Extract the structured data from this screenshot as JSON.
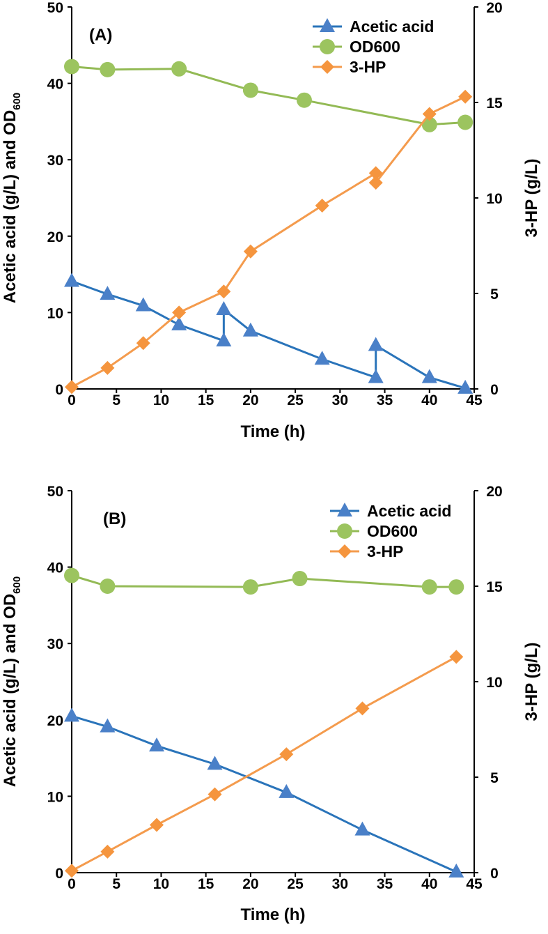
{
  "colors": {
    "acetic": "#2a74ba",
    "acetic_marker": "#4a80c8",
    "od": "#93ba55",
    "od_marker": "#9cc45f",
    "hp": "#f49b4d",
    "hp_marker": "#f5953e"
  },
  "chart_data": [
    {
      "type": "line",
      "panel_label": "(A)",
      "xlabel": "Time (h)",
      "ylabel": "Acetic acid (g/L) and OD",
      "ylabel_sub": "600",
      "y2label": "3-HP (g/L)",
      "xlim": [
        0,
        45
      ],
      "ylim": [
        0,
        50
      ],
      "y2lim": [
        0,
        20
      ],
      "x_ticks": [
        "0",
        "5",
        "10",
        "15",
        "20",
        "25",
        "30",
        "35",
        "40",
        "45"
      ],
      "y_ticks": [
        "0",
        "10",
        "20",
        "30",
        "40",
        "50"
      ],
      "y2_ticks": [
        "0",
        "5",
        "10",
        "15",
        "20"
      ],
      "legend_position": "top-right",
      "series": [
        {
          "name": "Acetic acid",
          "axis": "left",
          "marker": "triangle",
          "x": [
            0,
            4,
            8,
            12,
            17,
            17,
            20,
            28,
            34,
            34,
            40,
            44
          ],
          "y": [
            14.1,
            12.4,
            10.9,
            8.4,
            6.3,
            10.4,
            7.6,
            3.9,
            1.5,
            5.7,
            1.5,
            0.1
          ]
        },
        {
          "name": "OD600",
          "axis": "left",
          "marker": "circle",
          "x": [
            0,
            4,
            12,
            20,
            26,
            40,
            44
          ],
          "y": [
            42.2,
            41.8,
            41.9,
            39.1,
            37.8,
            34.6,
            34.9
          ]
        },
        {
          "name": "3-HP",
          "axis": "right",
          "marker": "diamond",
          "x": [
            0,
            4,
            8,
            12,
            17,
            20,
            28,
            34,
            34,
            40,
            44
          ],
          "y": [
            0.1,
            1.1,
            2.4,
            4.0,
            5.1,
            7.2,
            9.6,
            11.3,
            10.8,
            14.4,
            15.3
          ]
        }
      ]
    },
    {
      "type": "line",
      "panel_label": "(B)",
      "xlabel": "Time (h)",
      "ylabel": "Acetic acid (g/L) and OD",
      "ylabel_sub": "600",
      "y2label": "3-HP (g/L)",
      "xlim": [
        0,
        45
      ],
      "ylim": [
        0,
        50
      ],
      "y2lim": [
        0,
        20
      ],
      "x_ticks": [
        "0",
        "5",
        "10",
        "15",
        "20",
        "25",
        "30",
        "35",
        "40",
        "45"
      ],
      "y_ticks": [
        "0",
        "10",
        "20",
        "30",
        "40",
        "50"
      ],
      "y2_ticks": [
        "0",
        "5",
        "10",
        "15",
        "20"
      ],
      "legend_position": "top-right",
      "series": [
        {
          "name": "Acetic acid",
          "axis": "left",
          "marker": "triangle",
          "x": [
            0,
            4,
            9.5,
            16,
            24,
            32.5,
            43
          ],
          "y": [
            20.5,
            19.1,
            16.6,
            14.2,
            10.5,
            5.6,
            0.1
          ]
        },
        {
          "name": "OD600",
          "axis": "left",
          "marker": "circle",
          "x": [
            0,
            4,
            20,
            25.5,
            40,
            43
          ],
          "y": [
            38.9,
            37.5,
            37.4,
            38.5,
            37.4,
            37.4
          ]
        },
        {
          "name": "3-HP",
          "axis": "right",
          "marker": "diamond",
          "x": [
            0,
            4,
            9.5,
            16,
            24,
            32.5,
            43
          ],
          "y": [
            0.1,
            1.1,
            2.5,
            4.1,
            6.2,
            8.6,
            11.3
          ]
        }
      ]
    }
  ]
}
